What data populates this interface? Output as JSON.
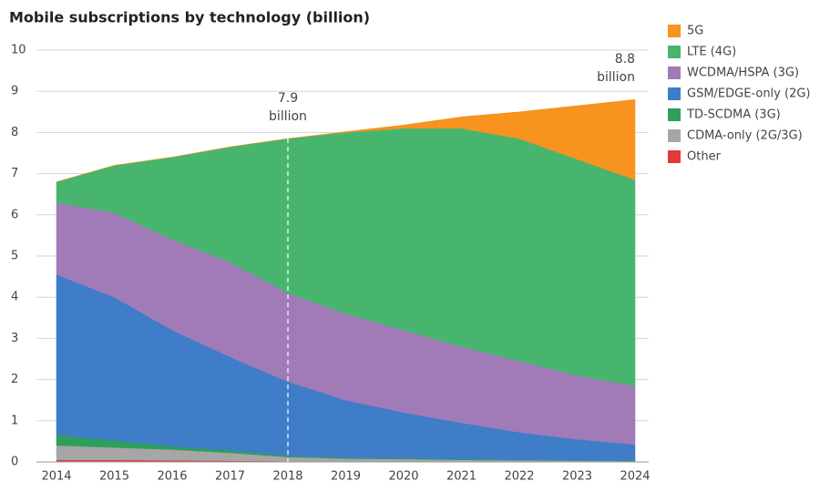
{
  "chart_data": {
    "type": "stacked_area",
    "title": "Mobile subscriptions by technology (billion)",
    "categories": [
      "2014",
      "2015",
      "2016",
      "2017",
      "2018",
      "2019",
      "2020",
      "2021",
      "2022",
      "2023",
      "2024"
    ],
    "series": [
      {
        "name": "5G",
        "color": "#f7931e",
        "values": [
          0,
          0,
          0,
          0,
          0,
          0.02,
          0.08,
          0.28,
          0.65,
          1.3,
          1.95
        ]
      },
      {
        "name": "LTE (4G)",
        "color": "#48b56e",
        "values": [
          0.5,
          1.15,
          2.0,
          2.8,
          3.75,
          4.4,
          4.9,
          5.3,
          5.4,
          5.25,
          5.0
        ]
      },
      {
        "name": "WCDMA/HSPA (3G)",
        "color": "#a07bb8",
        "values": [
          1.75,
          2.05,
          2.2,
          2.3,
          2.15,
          2.1,
          2.0,
          1.85,
          1.73,
          1.55,
          1.43
        ]
      },
      {
        "name": "GSM/EDGE-only (2G)",
        "color": "#3f7dc8",
        "values": [
          3.9,
          3.48,
          2.82,
          2.27,
          1.8,
          1.4,
          1.11,
          0.88,
          0.67,
          0.51,
          0.39
        ]
      },
      {
        "name": "TD-SCDMA (3G)",
        "color": "#2e9e5b",
        "values": [
          0.25,
          0.17,
          0.08,
          0.06,
          0.03,
          0.02,
          0.02,
          0.02,
          0.01,
          0.01,
          0.01
        ]
      },
      {
        "name": "CDMA-only (2G/3G)",
        "color": "#a6a6a6",
        "values": [
          0.35,
          0.3,
          0.26,
          0.19,
          0.1,
          0.07,
          0.06,
          0.04,
          0.03,
          0.02,
          0.01
        ]
      },
      {
        "name": "Other",
        "color": "#e03a3a",
        "values": [
          0.05,
          0.05,
          0.04,
          0.03,
          0.02,
          0.01,
          0.01,
          0.01,
          0.01,
          0.01,
          0.01
        ]
      }
    ],
    "ylim": [
      0,
      10
    ],
    "yticks": [
      0,
      1,
      2,
      3,
      4,
      5,
      6,
      7,
      8,
      9,
      10
    ],
    "grid": true,
    "annotations": [
      {
        "x": "2018",
        "lines": [
          "7.9",
          "billion"
        ],
        "dashed": true
      },
      {
        "x": "2024",
        "lines": [
          "8.8",
          "billion"
        ],
        "dashed": false
      }
    ]
  }
}
